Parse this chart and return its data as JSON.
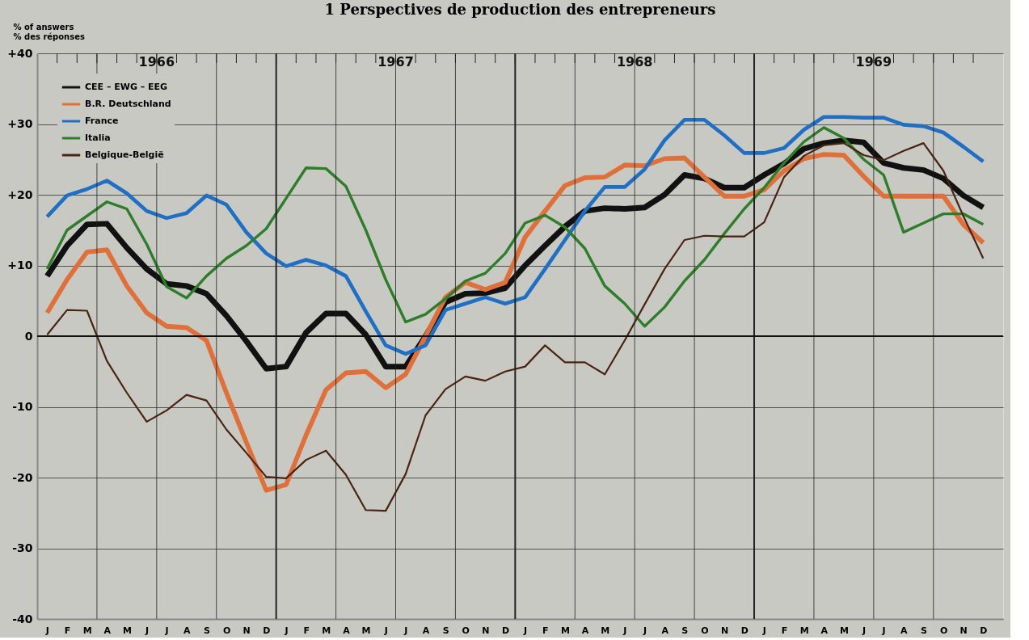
{
  "chart_data": {
    "type": "line",
    "title": "1 Perspectives de production des entrepreneurs",
    "ylabel": "% of answers\n% des réponses",
    "categories": [
      "J",
      "F",
      "M",
      "A",
      "M",
      "J",
      "J",
      "A",
      "S",
      "O",
      "N",
      "D",
      "J",
      "F",
      "M",
      "A",
      "M",
      "J",
      "J",
      "A",
      "S",
      "O",
      "N",
      "D",
      "J",
      "F",
      "M",
      "A",
      "M",
      "J",
      "J",
      "A",
      "S",
      "O",
      "N",
      "D",
      "J",
      "F",
      "M",
      "A",
      "M",
      "J",
      "J",
      "A",
      "S",
      "O",
      "N",
      "D"
    ],
    "series": [
      {
        "name": "CEE – EWG – EEG",
        "color": "#111111",
        "values": [
          8.5,
          12.8,
          15.8,
          15.9,
          12.5,
          9.5,
          7.4,
          7.1,
          6,
          2.9,
          -0.7,
          -4.6,
          -4.3,
          0.5,
          3.2,
          3.2,
          0.2,
          -4.3,
          -4.3,
          0,
          4.8,
          6,
          6.1,
          6.8,
          10,
          12.8,
          15.5,
          17.7,
          18.1,
          18,
          18.2,
          20,
          22.8,
          22.3,
          21,
          21,
          22.8,
          24.4,
          26.5,
          27.3,
          27.7,
          27.4,
          24.5,
          23.8,
          23.5,
          22.3,
          19.9,
          18.2
        ]
      },
      {
        "name": "B.R. Deutschland",
        "color": "#e0703a",
        "values": [
          3.3,
          8,
          11.9,
          12.2,
          7.1,
          3.3,
          1.4,
          1.2,
          -0.6,
          -8,
          -15,
          -21.8,
          -21,
          -14,
          -7.6,
          -5.2,
          -5,
          -7.3,
          -5.4,
          0,
          5.5,
          7.6,
          6.6,
          7.6,
          14,
          17.7,
          21.3,
          22.4,
          22.5,
          24.2,
          24.1,
          25.1,
          25.2,
          22.5,
          19.8,
          19.8,
          20.7,
          23.4,
          25.1,
          25.7,
          25.6,
          22.6,
          19.8,
          19.8,
          19.8,
          19.8,
          15.8,
          13.2
        ]
      },
      {
        "name": "France",
        "color": "#1f6fc4",
        "values": [
          16.9,
          19.9,
          20.8,
          22,
          20.2,
          17.7,
          16.7,
          17.4,
          19.9,
          18.6,
          14.7,
          11.7,
          9.9,
          10.8,
          10,
          8.5,
          3.5,
          -1.3,
          -2.5,
          -1.3,
          3.7,
          4.6,
          5.5,
          4.6,
          5.5,
          9.5,
          13.6,
          17.7,
          21.1,
          21.1,
          23.6,
          27.7,
          30.6,
          30.6,
          28.4,
          25.9,
          25.9,
          26.6,
          29.2,
          31,
          31,
          30.9,
          30.9,
          29.9,
          29.7,
          28.8,
          26.8,
          24.7
        ]
      },
      {
        "name": "Italia",
        "color": "#2e7d2a",
        "values": [
          9.5,
          15,
          17,
          19,
          18,
          13,
          7,
          5.4,
          8.5,
          11,
          12.8,
          15.2,
          19.5,
          23.8,
          23.7,
          21.2,
          15,
          8,
          2,
          3.1,
          5.3,
          7.8,
          8.9,
          11.7,
          16,
          17.1,
          15.4,
          12.4,
          7.1,
          4.6,
          1.4,
          4.1,
          7.8,
          10.8,
          14.5,
          18,
          21,
          24.5,
          27.5,
          29.5,
          28,
          25,
          22.8,
          14.7,
          16,
          17.3,
          17.3,
          15.8
        ]
      },
      {
        "name": "Belgique-België",
        "color": "#4a2412",
        "values": [
          0.2,
          3.7,
          3.6,
          -3.5,
          -8,
          -12.1,
          -10.5,
          -8.3,
          -9.1,
          -13.2,
          -16.5,
          -19.9,
          -20.1,
          -17.5,
          -16.2,
          -19.6,
          -24.6,
          -24.7,
          -19.5,
          -11.2,
          -7.5,
          -5.7,
          -6.3,
          -5,
          -4.3,
          -1.3,
          -3.7,
          -3.7,
          -5.4,
          -0.6,
          4.5,
          9.5,
          13.6,
          14.2,
          14.1,
          14.1,
          16.1,
          22.5,
          25.5,
          27,
          27.3,
          25.6,
          24.9,
          26.2,
          27.3,
          23.4,
          17,
          11
        ]
      }
    ],
    "ylim": [
      -40,
      40
    ],
    "yticks": [
      {
        "value": 40,
        "label": "+40"
      },
      {
        "value": 30,
        "label": "+30"
      },
      {
        "value": 20,
        "label": "+20"
      },
      {
        "value": 10,
        "label": "+10"
      },
      0,
      -10,
      -20,
      -30,
      -40
    ],
    "annotations": [
      "1966",
      "1967",
      "1968",
      "1969"
    ],
    "grid": true,
    "legend": "top left",
    "marker": "none",
    "line_style": "solid"
  }
}
